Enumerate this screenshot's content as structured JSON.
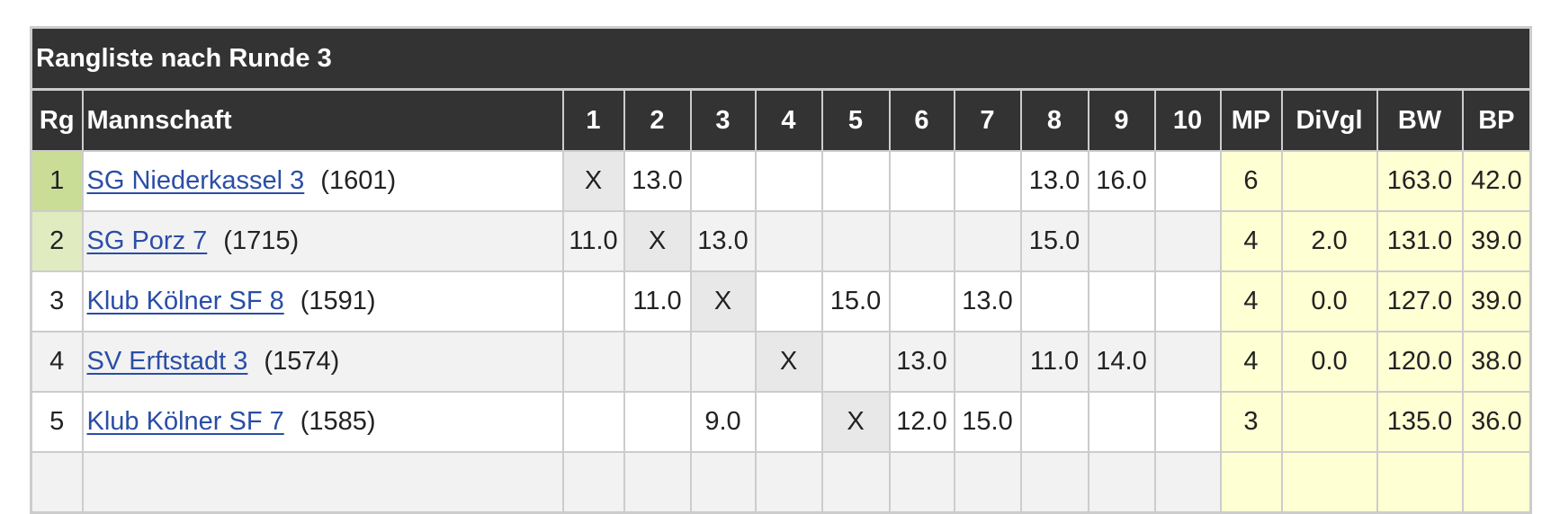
{
  "title": "Rangliste nach Runde 3",
  "headers": [
    "Rg",
    "Mannschaft",
    "1",
    "2",
    "3",
    "4",
    "5",
    "6",
    "7",
    "8",
    "9",
    "10",
    "MP",
    "DiVgl",
    "BW",
    "BP"
  ],
  "colors": {
    "header_bg": "#333333",
    "rank1": "#c9dd97",
    "rank2": "#e0ecc0",
    "summary_bg": "#ffffd4",
    "link": "#2a4ea6",
    "diagonal": "#e8e8e8"
  },
  "rows": [
    {
      "rank": "1",
      "team": "SG Niederkassel 3",
      "dwz": "(1601)",
      "rounds": [
        "X",
        "13.0",
        "",
        "",
        "",
        "",
        "",
        "13.0",
        "16.0",
        ""
      ],
      "mp": "6",
      "divgl": "",
      "bw": "163.0",
      "bp": "42.0"
    },
    {
      "rank": "2",
      "team": "SG Porz 7",
      "dwz": "(1715)",
      "rounds": [
        "11.0",
        "X",
        "13.0",
        "",
        "",
        "",
        "",
        "15.0",
        "",
        ""
      ],
      "mp": "4",
      "divgl": "2.0",
      "bw": "131.0",
      "bp": "39.0"
    },
    {
      "rank": "3",
      "team": "Klub Kölner SF 8",
      "dwz": "(1591)",
      "rounds": [
        "",
        "11.0",
        "X",
        "",
        "15.0",
        "",
        "13.0",
        "",
        "",
        ""
      ],
      "mp": "4",
      "divgl": "0.0",
      "bw": "127.0",
      "bp": "39.0"
    },
    {
      "rank": "4",
      "team": "SV Erftstadt 3",
      "dwz": "(1574)",
      "rounds": [
        "",
        "",
        "",
        "X",
        "",
        "13.0",
        "",
        "11.0",
        "14.0",
        ""
      ],
      "mp": "4",
      "divgl": "0.0",
      "bw": "120.0",
      "bp": "38.0"
    },
    {
      "rank": "5",
      "team": "Klub Kölner SF 7",
      "dwz": "(1585)",
      "rounds": [
        "",
        "",
        "9.0",
        "",
        "X",
        "12.0",
        "15.0",
        "",
        "",
        ""
      ],
      "mp": "3",
      "divgl": "",
      "bw": "135.0",
      "bp": "36.0"
    }
  ]
}
